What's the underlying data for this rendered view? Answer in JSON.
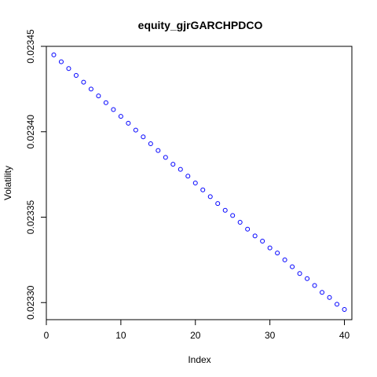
{
  "chart_data": {
    "type": "scatter",
    "title": "equity_gjrGARCHPDCO",
    "xlabel": "Index",
    "ylabel": "Volatility",
    "xlim": [
      0,
      41
    ],
    "ylim": [
      0.02329,
      0.02345
    ],
    "x_ticks": [
      0,
      10,
      20,
      30,
      40
    ],
    "x_tick_labels": [
      "0",
      "10",
      "20",
      "30",
      "40"
    ],
    "y_ticks": [
      0.0233,
      0.02335,
      0.0234,
      0.02345
    ],
    "y_tick_labels": [
      "0.02330",
      "0.02335",
      "0.02340",
      "0.02345"
    ],
    "point_color": "#0000ff",
    "grid": false,
    "series": [
      {
        "x": [
          1,
          2,
          3,
          4,
          5,
          6,
          7,
          8,
          9,
          10,
          11,
          12,
          13,
          14,
          15,
          16,
          17,
          18,
          19,
          20,
          21,
          22,
          23,
          24,
          25,
          26,
          27,
          28,
          29,
          30,
          31,
          32,
          33,
          34,
          35,
          36,
          37,
          38,
          39,
          40
        ],
        "values": [
          0.023445,
          0.023441,
          0.023437,
          0.023433,
          0.023429,
          0.023425,
          0.023421,
          0.023417,
          0.023413,
          0.023409,
          0.023405,
          0.023401,
          0.023397,
          0.023393,
          0.023389,
          0.023385,
          0.023381,
          0.023378,
          0.023374,
          0.02337,
          0.023366,
          0.023362,
          0.023358,
          0.023354,
          0.023351,
          0.023347,
          0.023343,
          0.023339,
          0.023336,
          0.023332,
          0.023329,
          0.023325,
          0.023321,
          0.023317,
          0.023314,
          0.02331,
          0.023306,
          0.023303,
          0.023299,
          0.023296
        ]
      }
    ]
  }
}
